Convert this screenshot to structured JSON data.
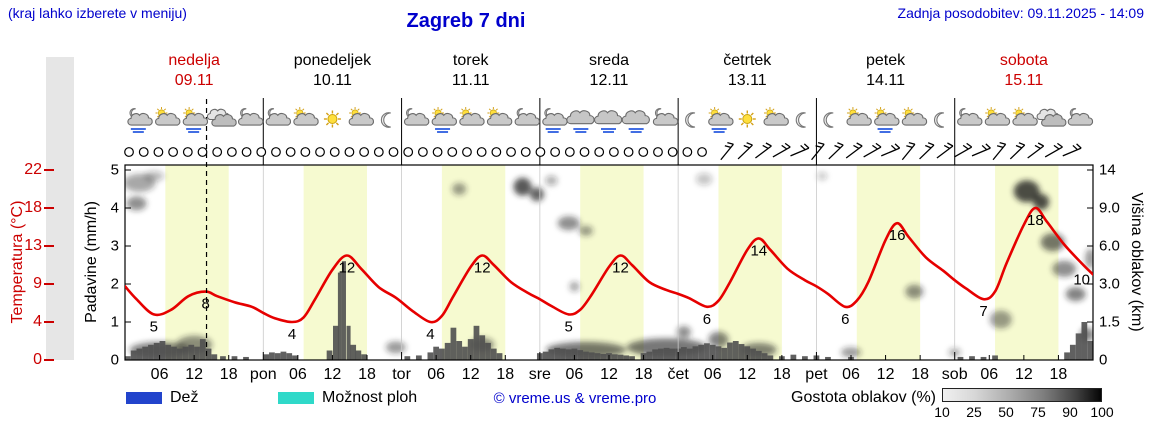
{
  "header": {
    "hint": "(kraj lahko izberete v meniju)",
    "title": "Zagreb 7 dni",
    "last_update": "Zadnja posodobitev: 09.11.2025 - 14:09"
  },
  "colors": {
    "accent_blue": "#0000cc",
    "accent_red": "#cc0000",
    "daylight_band": "#f6fad0",
    "temp_line": "#e60000",
    "precip_bar": "#4f4f4f",
    "left_strip": "#e6e6e6"
  },
  "days": [
    {
      "name": "nedelja",
      "date": "09.11",
      "red": true,
      "icons": [
        "moon-cloud-rain",
        "sun-cloud",
        "sun-cloud-rain",
        "clouds",
        "moon-cloud"
      ]
    },
    {
      "name": "ponedeljek",
      "date": "10.11",
      "red": false,
      "icons": [
        "moon-cloud",
        "sun-cloud",
        "sun",
        "sun-cloud",
        "moon"
      ]
    },
    {
      "name": "torek",
      "date": "11.11",
      "red": false,
      "icons": [
        "moon-cloud",
        "sun-cloud-rain",
        "sun-cloud",
        "sun-cloud",
        "moon-cloud"
      ]
    },
    {
      "name": "sreda",
      "date": "12.11",
      "red": false,
      "icons": [
        "moon-cloud-rain",
        "cloud-rain",
        "cloud-rain",
        "cloud-rain",
        "moon-cloud"
      ]
    },
    {
      "name": "četrtek",
      "date": "13.11",
      "red": false,
      "icons": [
        "moon",
        "sun-cloud-rain",
        "sun",
        "sun-cloud",
        "moon"
      ]
    },
    {
      "name": "petek",
      "date": "14.11",
      "red": false,
      "icons": [
        "moon",
        "sun-cloud",
        "sun-cloud-rain",
        "sun-cloud",
        "moon"
      ]
    },
    {
      "name": "sobota",
      "date": "15.11",
      "red": true,
      "icons": [
        "moon-cloud",
        "sun-cloud",
        "sun-cloud",
        "clouds",
        "moon-cloud"
      ]
    }
  ],
  "axes": {
    "temp": {
      "label": "Temperatura (°C)",
      "ticks": [
        "22",
        "18",
        "13",
        "9",
        "4",
        "0"
      ]
    },
    "precip": {
      "label": "Padavine (mm/h)",
      "ticks": [
        "5",
        "4",
        "3",
        "2",
        "1",
        "0"
      ]
    },
    "cloud_height": {
      "label": "Višina oblakov (km)",
      "ticks": [
        "14",
        "9.0",
        "6.0",
        "3.0",
        "1.5",
        "0"
      ]
    },
    "x": {
      "hour_labels": [
        "06",
        "12",
        "18"
      ],
      "day_boundary_labels": [
        "pon",
        "tor",
        "sre",
        "čet",
        "pet",
        "sob"
      ]
    }
  },
  "legend": {
    "rain_label": "Dež",
    "rain_color": "#2244cc",
    "showers_label": "Možnost ploh",
    "showers_color": "#2fd9c9",
    "copyright": "© vreme.us & vreme.pro",
    "cloud_density_label": "Gostota oblakov (%)",
    "density_ticks": [
      "10",
      "25",
      "50",
      "75",
      "90",
      "100"
    ]
  },
  "timeline": {
    "hours_total": 168,
    "daylight_start_hour": 7,
    "daylight_end_hour": 18,
    "current_time_hour": 14.15
  },
  "chart_data": [
    {
      "type": "line",
      "name": "Temperatura",
      "unit": "°C",
      "color": "#e60000",
      "x_hours_range": [
        0,
        168
      ],
      "y_ticks": [
        0,
        4,
        9,
        13,
        18,
        22
      ],
      "points": [
        [
          0,
          8.7
        ],
        [
          2,
          7.0
        ],
        [
          5,
          5.0
        ],
        [
          8,
          5.6
        ],
        [
          11,
          7.4
        ],
        [
          14,
          8.0
        ],
        [
          16,
          7.4
        ],
        [
          19,
          6.6
        ],
        [
          22,
          6.0
        ],
        [
          24,
          5.2
        ],
        [
          26,
          4.5
        ],
        [
          29,
          4.0
        ],
        [
          31,
          4.6
        ],
        [
          33,
          7.0
        ],
        [
          36,
          10.5
        ],
        [
          38.5,
          12.0
        ],
        [
          41,
          10.6
        ],
        [
          44,
          8.6
        ],
        [
          47,
          7.2
        ],
        [
          50,
          5.4
        ],
        [
          53,
          4.0
        ],
        [
          55,
          4.8
        ],
        [
          57,
          7.4
        ],
        [
          60,
          10.8
        ],
        [
          62,
          12.0
        ],
        [
          64,
          11.0
        ],
        [
          67,
          9.2
        ],
        [
          70,
          7.8
        ],
        [
          72,
          7.0
        ],
        [
          74,
          6.1
        ],
        [
          77,
          5.0
        ],
        [
          79,
          5.6
        ],
        [
          81,
          7.6
        ],
        [
          84,
          10.8
        ],
        [
          86,
          12.0
        ],
        [
          88,
          11.0
        ],
        [
          91,
          9.2
        ],
        [
          94,
          8.2
        ],
        [
          96,
          7.7
        ],
        [
          98,
          7.1
        ],
        [
          101,
          6.0
        ],
        [
          103,
          6.8
        ],
        [
          105,
          9.2
        ],
        [
          108,
          12.6
        ],
        [
          110,
          14.0
        ],
        [
          112,
          12.6
        ],
        [
          115,
          10.6
        ],
        [
          118,
          9.4
        ],
        [
          120,
          8.7
        ],
        [
          122,
          7.7
        ],
        [
          125,
          6.0
        ],
        [
          127,
          6.8
        ],
        [
          129,
          9.2
        ],
        [
          132,
          13.8
        ],
        [
          134,
          16.0
        ],
        [
          136,
          14.2
        ],
        [
          139,
          11.8
        ],
        [
          142,
          10.4
        ],
        [
          144,
          9.4
        ],
        [
          146,
          8.4
        ],
        [
          149,
          7.0
        ],
        [
          151,
          8.0
        ],
        [
          153,
          11.2
        ],
        [
          156,
          15.8
        ],
        [
          158,
          18.0
        ],
        [
          160,
          16.2
        ],
        [
          163,
          13.2
        ],
        [
          166,
          11.2
        ],
        [
          168,
          10.0
        ]
      ],
      "extreme_labels": [
        [
          5,
          5
        ],
        [
          14,
          8
        ],
        [
          29,
          4
        ],
        [
          38.5,
          12
        ],
        [
          53,
          4
        ],
        [
          62,
          12
        ],
        [
          77,
          5
        ],
        [
          86,
          12
        ],
        [
          101,
          6
        ],
        [
          110,
          14
        ],
        [
          125,
          6
        ],
        [
          134,
          16
        ],
        [
          149,
          7
        ],
        [
          158,
          18
        ],
        [
          168,
          10
        ]
      ]
    },
    {
      "type": "bar",
      "name": "Padavine",
      "unit": "mm/h",
      "color": "#4f4f4f",
      "ylim": [
        0,
        5
      ],
      "bars": [
        [
          0.5,
          0.1
        ],
        [
          1.5,
          0.25
        ],
        [
          2.5,
          0.3
        ],
        [
          3.5,
          0.35
        ],
        [
          4.5,
          0.4
        ],
        [
          5.5,
          0.45
        ],
        [
          6.5,
          0.5
        ],
        [
          7.5,
          0.4
        ],
        [
          8.5,
          0.35
        ],
        [
          9.5,
          0.3
        ],
        [
          10.5,
          0.35
        ],
        [
          11.5,
          0.4
        ],
        [
          12.5,
          0.35
        ],
        [
          13.5,
          0.55
        ],
        [
          14.5,
          0.3
        ],
        [
          15.5,
          0.15
        ],
        [
          17,
          0.1
        ],
        [
          19,
          0.1
        ],
        [
          21,
          0.08
        ],
        [
          24.5,
          0.15
        ],
        [
          25.5,
          0.2
        ],
        [
          26.5,
          0.18
        ],
        [
          27.5,
          0.22
        ],
        [
          28.5,
          0.18
        ],
        [
          29.5,
          0.12
        ],
        [
          35.5,
          0.25
        ],
        [
          36.6,
          0.9
        ],
        [
          37.3,
          2.3,
          0.7
        ],
        [
          38,
          2.6,
          0.7
        ],
        [
          38.8,
          0.9,
          0.7
        ],
        [
          39.6,
          0.4
        ],
        [
          40.5,
          0.25
        ],
        [
          41.5,
          0.15
        ],
        [
          49,
          0.1
        ],
        [
          51,
          0.12
        ],
        [
          53,
          0.2
        ],
        [
          54,
          0.35
        ],
        [
          55,
          0.3
        ],
        [
          56,
          0.45
        ],
        [
          57,
          0.85
        ],
        [
          58,
          0.5
        ],
        [
          59,
          0.35
        ],
        [
          60,
          0.55
        ],
        [
          61,
          0.9
        ],
        [
          62,
          0.65
        ],
        [
          63,
          0.45
        ],
        [
          64,
          0.3
        ],
        [
          65,
          0.18
        ],
        [
          72,
          0.18
        ],
        [
          73,
          0.22
        ],
        [
          74,
          0.28
        ],
        [
          75,
          0.32
        ],
        [
          76,
          0.3
        ],
        [
          77,
          0.28
        ],
        [
          78,
          0.3
        ],
        [
          79,
          0.26
        ],
        [
          80,
          0.22
        ],
        [
          81,
          0.2
        ],
        [
          82,
          0.18
        ],
        [
          83,
          0.16
        ],
        [
          84,
          0.18
        ],
        [
          85,
          0.15
        ],
        [
          86,
          0.14
        ],
        [
          87,
          0.12
        ],
        [
          88,
          0.1
        ],
        [
          90,
          0.18
        ],
        [
          91,
          0.22
        ],
        [
          92,
          0.28
        ],
        [
          93,
          0.3
        ],
        [
          94,
          0.32
        ],
        [
          95,
          0.3
        ],
        [
          96,
          0.3
        ],
        [
          97,
          0.34
        ],
        [
          98,
          0.3
        ],
        [
          99,
          0.36
        ],
        [
          100,
          0.4
        ],
        [
          101,
          0.44
        ],
        [
          102,
          0.4
        ],
        [
          103,
          0.36
        ],
        [
          104,
          0.32
        ],
        [
          105,
          0.46
        ],
        [
          106,
          0.5
        ],
        [
          107,
          0.42
        ],
        [
          108,
          0.36
        ],
        [
          109,
          0.3
        ],
        [
          110,
          0.24
        ],
        [
          111,
          0.18
        ],
        [
          112,
          0.12
        ],
        [
          114,
          0.1
        ],
        [
          116,
          0.14
        ],
        [
          118,
          0.1
        ],
        [
          120,
          0.12
        ],
        [
          122,
          0.08
        ],
        [
          126,
          0.08
        ],
        [
          145,
          0.08
        ],
        [
          147,
          0.1
        ],
        [
          149,
          0.08
        ],
        [
          151,
          0.12
        ],
        [
          163.5,
          0.2
        ],
        [
          164.5,
          0.4
        ],
        [
          165.5,
          0.7
        ],
        [
          166.5,
          1.0
        ],
        [
          167.5,
          0.5
        ]
      ]
    },
    {
      "type": "area",
      "name": "Gostota in višina oblakov",
      "unit": "km",
      "y_ticks": [
        0,
        1.5,
        3,
        6,
        9,
        14
      ],
      "blobs": [
        [
          2.5,
          12.3,
          16,
          9,
          0.4
        ],
        [
          2,
          9.6,
          10,
          7,
          0.5
        ],
        [
          5,
          13.2,
          10,
          5,
          0.3
        ],
        [
          6,
          0.4,
          30,
          8,
          0.55
        ],
        [
          12,
          0.6,
          18,
          9,
          0.5
        ],
        [
          47,
          0.5,
          10,
          6,
          0.45
        ],
        [
          58,
          11.5,
          7,
          6,
          0.45
        ],
        [
          62,
          0.6,
          12,
          7,
          0.5
        ],
        [
          69,
          11.8,
          9,
          9,
          0.75
        ],
        [
          71.5,
          10.8,
          7,
          7,
          0.7
        ],
        [
          74,
          12.6,
          6,
          5,
          0.35
        ],
        [
          77,
          7.8,
          11,
          7,
          0.5
        ],
        [
          80,
          7.2,
          7,
          5,
          0.45
        ],
        [
          78,
          2.9,
          5,
          5,
          0.4
        ],
        [
          80,
          0.4,
          40,
          8,
          0.6
        ],
        [
          94,
          0.5,
          40,
          9,
          0.6
        ],
        [
          97,
          1.1,
          7,
          6,
          0.5
        ],
        [
          100.5,
          12.8,
          8,
          6,
          0.25
        ],
        [
          103,
          0.8,
          10,
          8,
          0.55
        ],
        [
          110,
          0.4,
          18,
          7,
          0.55
        ],
        [
          121,
          13.2,
          5,
          4,
          0.25
        ],
        [
          126,
          0.3,
          10,
          5,
          0.45
        ],
        [
          137,
          2.7,
          9,
          7,
          0.5
        ],
        [
          144,
          0.3,
          6,
          4,
          0.4
        ],
        [
          152,
          1.6,
          11,
          9,
          0.45
        ],
        [
          156.5,
          11.2,
          13,
          11,
          0.8
        ],
        [
          159,
          9.8,
          8,
          8,
          0.8
        ],
        [
          161,
          6.3,
          12,
          9,
          0.6
        ],
        [
          163,
          4.2,
          12,
          8,
          0.5
        ],
        [
          165,
          2.6,
          10,
          7,
          0.55
        ],
        [
          167,
          1.0,
          7,
          7,
          0.55
        ],
        [
          167.5,
          5,
          5,
          10,
          0.45
        ]
      ]
    },
    {
      "type": "scatter",
      "name": "Simboli oblačnosti in vetra",
      "cloud_cover_circles": {
        "start_hour": 0.7,
        "end_hour": 102,
        "step_hours": 2.55
      },
      "wind_barbs": {
        "start_hour": 104.5,
        "end_hour": 167.5,
        "step_hours": 3.15
      }
    }
  ]
}
